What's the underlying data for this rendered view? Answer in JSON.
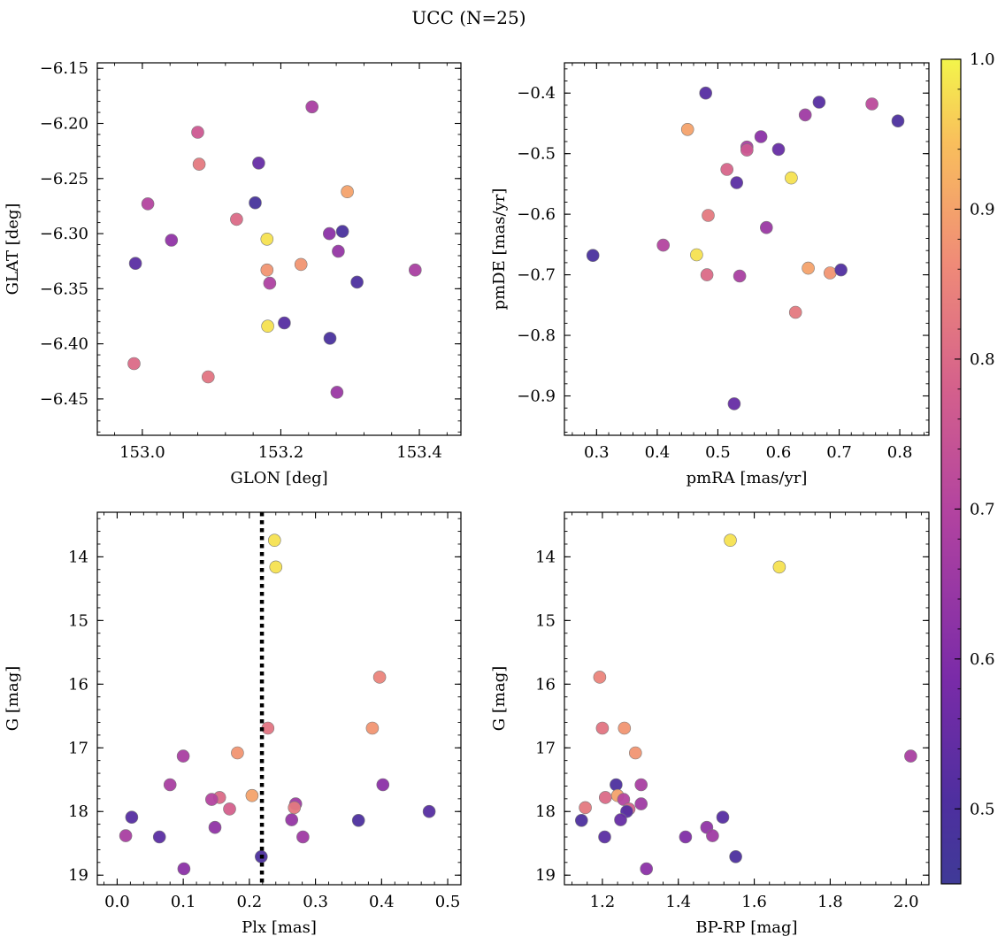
{
  "figure": {
    "title": "UCC (N=25)"
  },
  "colormap": {
    "name": "plasma",
    "range": [
      0.45,
      1.0
    ],
    "ticks": [
      0.5,
      0.6,
      0.7,
      0.8,
      0.9,
      1.0
    ]
  },
  "chart_data": [
    {
      "type": "scatter",
      "xlabel": "GLON [deg]",
      "ylabel": "GLAT [deg]",
      "xlim": [
        152.935,
        153.46
      ],
      "ylim": [
        -6.483,
        -6.145
      ],
      "xticks": [
        153.0,
        153.2,
        153.4
      ],
      "yticks": [
        -6.45,
        -6.4,
        -6.35,
        -6.3,
        -6.25,
        -6.2,
        -6.15
      ],
      "inverted_y": false,
      "points": [
        {
          "x": 153.245,
          "y": -6.185,
          "c": 0.68
        },
        {
          "x": 153.08,
          "y": -6.208,
          "c": 0.76
        },
        {
          "x": 153.082,
          "y": -6.237,
          "c": 0.83
        },
        {
          "x": 153.168,
          "y": -6.236,
          "c": 0.55
        },
        {
          "x": 153.296,
          "y": -6.262,
          "c": 0.9
        },
        {
          "x": 153.008,
          "y": -6.273,
          "c": 0.7
        },
        {
          "x": 153.163,
          "y": -6.272,
          "c": 0.48
        },
        {
          "x": 153.136,
          "y": -6.287,
          "c": 0.8
        },
        {
          "x": 153.289,
          "y": -6.298,
          "c": 0.49
        },
        {
          "x": 153.27,
          "y": -6.3,
          "c": 0.62
        },
        {
          "x": 153.042,
          "y": -6.306,
          "c": 0.63
        },
        {
          "x": 153.18,
          "y": -6.305,
          "c": 0.98
        },
        {
          "x": 152.99,
          "y": -6.327,
          "c": 0.53
        },
        {
          "x": 153.18,
          "y": -6.333,
          "c": 0.88
        },
        {
          "x": 153.229,
          "y": -6.328,
          "c": 0.88
        },
        {
          "x": 153.283,
          "y": -6.316,
          "c": 0.64
        },
        {
          "x": 153.394,
          "y": -6.333,
          "c": 0.68
        },
        {
          "x": 153.184,
          "y": -6.345,
          "c": 0.69
        },
        {
          "x": 153.31,
          "y": -6.344,
          "c": 0.5
        },
        {
          "x": 153.205,
          "y": -6.381,
          "c": 0.52
        },
        {
          "x": 153.181,
          "y": -6.384,
          "c": 0.98
        },
        {
          "x": 153.271,
          "y": -6.395,
          "c": 0.49
        },
        {
          "x": 152.988,
          "y": -6.418,
          "c": 0.8
        },
        {
          "x": 153.095,
          "y": -6.43,
          "c": 0.82
        },
        {
          "x": 153.281,
          "y": -6.444,
          "c": 0.65
        }
      ]
    },
    {
      "type": "scatter",
      "xlabel": "pmRA [mas/yr]",
      "ylabel": "pmDE [mas/yr]",
      "xlim": [
        0.247,
        0.848
      ],
      "ylim": [
        -0.965,
        -0.35
      ],
      "xticks": [
        0.3,
        0.4,
        0.5,
        0.6,
        0.7,
        0.8
      ],
      "yticks": [
        -0.9,
        -0.8,
        -0.7,
        -0.6,
        -0.5,
        -0.4
      ],
      "inverted_y": false,
      "points": [
        {
          "x": 0.48,
          "y": -0.4,
          "c": 0.52
        },
        {
          "x": 0.667,
          "y": -0.415,
          "c": 0.52
        },
        {
          "x": 0.754,
          "y": -0.418,
          "c": 0.72
        },
        {
          "x": 0.797,
          "y": -0.446,
          "c": 0.5
        },
        {
          "x": 0.644,
          "y": -0.436,
          "c": 0.66
        },
        {
          "x": 0.571,
          "y": -0.472,
          "c": 0.62
        },
        {
          "x": 0.45,
          "y": -0.46,
          "c": 0.9
        },
        {
          "x": 0.548,
          "y": -0.489,
          "c": 0.68
        },
        {
          "x": 0.548,
          "y": -0.494,
          "c": 0.76
        },
        {
          "x": 0.6,
          "y": -0.493,
          "c": 0.55
        },
        {
          "x": 0.515,
          "y": -0.526,
          "c": 0.79
        },
        {
          "x": 0.531,
          "y": -0.548,
          "c": 0.53
        },
        {
          "x": 0.621,
          "y": -0.54,
          "c": 0.98
        },
        {
          "x": 0.484,
          "y": -0.602,
          "c": 0.83
        },
        {
          "x": 0.58,
          "y": -0.622,
          "c": 0.65
        },
        {
          "x": 0.294,
          "y": -0.668,
          "c": 0.49
        },
        {
          "x": 0.41,
          "y": -0.651,
          "c": 0.7
        },
        {
          "x": 0.465,
          "y": -0.667,
          "c": 0.98
        },
        {
          "x": 0.482,
          "y": -0.7,
          "c": 0.8
        },
        {
          "x": 0.536,
          "y": -0.702,
          "c": 0.68
        },
        {
          "x": 0.649,
          "y": -0.689,
          "c": 0.9
        },
        {
          "x": 0.685,
          "y": -0.697,
          "c": 0.88
        },
        {
          "x": 0.703,
          "y": -0.692,
          "c": 0.51
        },
        {
          "x": 0.628,
          "y": -0.762,
          "c": 0.83
        },
        {
          "x": 0.527,
          "y": -0.913,
          "c": 0.55
        }
      ]
    },
    {
      "type": "scatter",
      "xlabel": "Plx [mas]",
      "ylabel": "G [mag]",
      "xlim": [
        -0.03,
        0.52
      ],
      "ylim": [
        13.3,
        19.15
      ],
      "xticks": [
        0.0,
        0.1,
        0.2,
        0.3,
        0.4,
        0.5
      ],
      "yticks": [
        14,
        15,
        16,
        17,
        18,
        19
      ],
      "inverted_y": true,
      "vline": {
        "x": 0.219,
        "style": "dotted"
      },
      "points": [
        {
          "x": 0.238,
          "y": 13.74,
          "c": 0.98
        },
        {
          "x": 0.24,
          "y": 14.16,
          "c": 0.98
        },
        {
          "x": 0.397,
          "y": 15.89,
          "c": 0.85
        },
        {
          "x": 0.228,
          "y": 16.69,
          "c": 0.82
        },
        {
          "x": 0.386,
          "y": 16.69,
          "c": 0.88
        },
        {
          "x": 0.182,
          "y": 17.08,
          "c": 0.88
        },
        {
          "x": 0.1,
          "y": 17.13,
          "c": 0.68
        },
        {
          "x": 0.08,
          "y": 17.58,
          "c": 0.68
        },
        {
          "x": 0.402,
          "y": 17.58,
          "c": 0.62
        },
        {
          "x": 0.204,
          "y": 17.75,
          "c": 0.9
        },
        {
          "x": 0.155,
          "y": 17.78,
          "c": 0.8
        },
        {
          "x": 0.143,
          "y": 17.81,
          "c": 0.7
        },
        {
          "x": 0.27,
          "y": 17.88,
          "c": 0.66
        },
        {
          "x": 0.268,
          "y": 17.94,
          "c": 0.83
        },
        {
          "x": 0.17,
          "y": 17.96,
          "c": 0.78
        },
        {
          "x": 0.472,
          "y": 18.0,
          "c": 0.52
        },
        {
          "x": 0.022,
          "y": 18.09,
          "c": 0.52
        },
        {
          "x": 0.264,
          "y": 18.13,
          "c": 0.64
        },
        {
          "x": 0.365,
          "y": 18.14,
          "c": 0.5
        },
        {
          "x": 0.148,
          "y": 18.25,
          "c": 0.63
        },
        {
          "x": 0.013,
          "y": 18.38,
          "c": 0.68
        },
        {
          "x": 0.064,
          "y": 18.4,
          "c": 0.53
        },
        {
          "x": 0.281,
          "y": 18.4,
          "c": 0.66
        },
        {
          "x": 0.218,
          "y": 18.71,
          "c": 0.5
        },
        {
          "x": 0.101,
          "y": 18.9,
          "c": 0.62
        }
      ]
    },
    {
      "type": "scatter",
      "xlabel": "BP-RP [mag]",
      "ylabel": "G [mag]",
      "xlim": [
        1.1,
        2.06
      ],
      "ylim": [
        13.3,
        19.15
      ],
      "xticks": [
        1.2,
        1.4,
        1.6,
        1.8,
        2.0
      ],
      "yticks": [
        14,
        15,
        16,
        17,
        18,
        19
      ],
      "inverted_y": true,
      "points": [
        {
          "x": 1.537,
          "y": 13.74,
          "c": 0.98
        },
        {
          "x": 1.666,
          "y": 14.16,
          "c": 0.98
        },
        {
          "x": 1.193,
          "y": 15.89,
          "c": 0.85
        },
        {
          "x": 1.2,
          "y": 16.69,
          "c": 0.82
        },
        {
          "x": 1.258,
          "y": 16.69,
          "c": 0.88
        },
        {
          "x": 1.287,
          "y": 17.08,
          "c": 0.88
        },
        {
          "x": 2.012,
          "y": 17.13,
          "c": 0.68
        },
        {
          "x": 1.236,
          "y": 17.58,
          "c": 0.5
        },
        {
          "x": 1.302,
          "y": 17.58,
          "c": 0.68
        },
        {
          "x": 1.24,
          "y": 17.75,
          "c": 0.9
        },
        {
          "x": 1.208,
          "y": 17.78,
          "c": 0.8
        },
        {
          "x": 1.256,
          "y": 17.81,
          "c": 0.7
        },
        {
          "x": 1.302,
          "y": 17.88,
          "c": 0.66
        },
        {
          "x": 1.155,
          "y": 17.94,
          "c": 0.83
        },
        {
          "x": 1.27,
          "y": 17.96,
          "c": 0.78
        },
        {
          "x": 1.264,
          "y": 18.0,
          "c": 0.52
        },
        {
          "x": 1.517,
          "y": 18.09,
          "c": 0.52
        },
        {
          "x": 1.248,
          "y": 18.13,
          "c": 0.55
        },
        {
          "x": 1.145,
          "y": 18.14,
          "c": 0.5
        },
        {
          "x": 1.475,
          "y": 18.25,
          "c": 0.63
        },
        {
          "x": 1.419,
          "y": 18.4,
          "c": 0.6
        },
        {
          "x": 1.206,
          "y": 18.4,
          "c": 0.53
        },
        {
          "x": 1.49,
          "y": 18.38,
          "c": 0.66
        },
        {
          "x": 1.551,
          "y": 18.71,
          "c": 0.5
        },
        {
          "x": 1.316,
          "y": 18.9,
          "c": 0.62
        }
      ]
    }
  ]
}
